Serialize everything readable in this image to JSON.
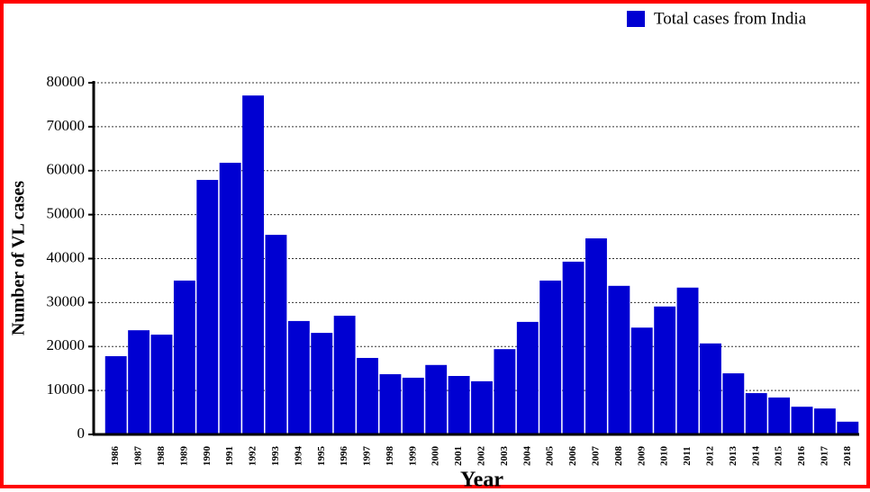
{
  "chart_data": {
    "type": "bar",
    "categories": [
      "1986",
      "1987",
      "1988",
      "1989",
      "1990",
      "1991",
      "1992",
      "1993",
      "1994",
      "1995",
      "1996",
      "1997",
      "1998",
      "1999",
      "2000",
      "2001",
      "2002",
      "2003",
      "2004",
      "2005",
      "2006",
      "2007",
      "2008",
      "2009",
      "2010",
      "2011",
      "2012",
      "2013",
      "2014",
      "2015",
      "2016",
      "2017",
      "2018"
    ],
    "series": [
      {
        "name": "Total cases from India",
        "color": "#0000d2",
        "values": [
          17800,
          23700,
          22700,
          35000,
          57900,
          61800,
          77100,
          45400,
          25800,
          23100,
          27000,
          17400,
          13700,
          12900,
          15800,
          13300,
          12100,
          19400,
          25600,
          35000,
          39300,
          44600,
          33800,
          24300,
          29100,
          33400,
          20700,
          13900,
          9400,
          8400,
          6300,
          5900,
          2900
        ]
      }
    ],
    "x_label": "Year",
    "y_label": "Number of VL cases",
    "ylim": [
      0,
      80000
    ],
    "yticks": [
      0,
      10000,
      20000,
      30000,
      40000,
      50000,
      60000,
      70000,
      80000
    ],
    "grid": true,
    "legend": "top-right"
  }
}
